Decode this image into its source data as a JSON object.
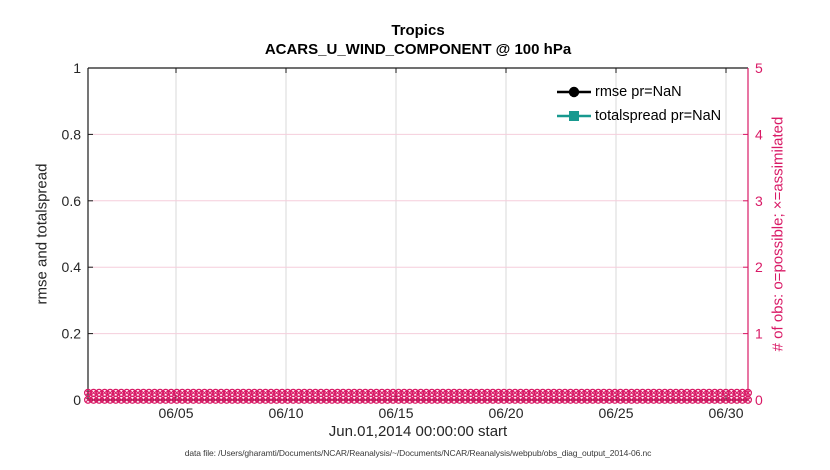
{
  "figure": {
    "footer_data_file": "data file: /Users/gharamti/Documents/NCAR/Reanalysis/~/Documents/NCAR/Reanalysis/webpub/obs_diag_output_2014-06.nc"
  },
  "chart_data": {
    "type": "line",
    "title": "Tropics",
    "subtitle": "ACARS_U_WIND_COMPONENT @ 100 hPa",
    "xlabel": "Jun.01,2014 00:00:00 start",
    "ylabel_left": "rmse and totalspread",
    "ylabel_right": "# of obs: o=possible; ×=assimilated",
    "x_axis": {
      "start_label": "Jun.01,2014 00:00:00",
      "tick_labels": [
        "06/05",
        "06/10",
        "06/15",
        "06/20",
        "06/25",
        "06/30"
      ],
      "tick_days": [
        5,
        10,
        15,
        20,
        25,
        30
      ],
      "range_days": [
        1,
        31
      ],
      "grid": true
    },
    "y_left": {
      "lim": [
        0,
        1
      ],
      "tick_labels": [
        "0",
        "0.2",
        "0.4",
        "0.6",
        "0.8",
        "1"
      ],
      "tick_values": [
        0,
        0.2,
        0.4,
        0.6,
        0.8,
        1
      ]
    },
    "y_right": {
      "lim": [
        0,
        5
      ],
      "tick_labels": [
        "0",
        "1",
        "2",
        "3",
        "4",
        "5"
      ],
      "tick_values": [
        0,
        1,
        2,
        3,
        4,
        5
      ],
      "grid": true
    },
    "series": [
      {
        "name": "rmse pr=NaN",
        "axis": "left",
        "marker": "circle",
        "color": "#000000",
        "values": null,
        "note": "pr=NaN, no curve drawn"
      },
      {
        "name": "totalspread pr=NaN",
        "axis": "left",
        "marker": "square",
        "color": "#18998F",
        "values": null,
        "note": "pr=NaN, no curve drawn"
      },
      {
        "name": "possible obs (o)",
        "axis": "right",
        "marker": "circle-x",
        "color": "#D91A66",
        "n_times": 120,
        "constant_value": 0
      },
      {
        "name": "assimilated obs (x)",
        "axis": "right",
        "marker": "circle-x",
        "color": "#D91A66",
        "n_times": 120,
        "constant_value": 0
      }
    ],
    "legend": [
      {
        "label": "rmse pr=NaN",
        "color": "#000000",
        "marker": "circle"
      },
      {
        "label": "totalspread pr=NaN",
        "color": "#18998F",
        "marker": "square"
      }
    ],
    "colors": {
      "right_axis": "#D91A66",
      "grid_vertical": "#D8D8D8",
      "grid_horizontal": "#F5CEDC",
      "axis_dark": "#1a1a1a",
      "tick_text": "#262626"
    },
    "legend_position": "top-right",
    "grid_on": true
  }
}
